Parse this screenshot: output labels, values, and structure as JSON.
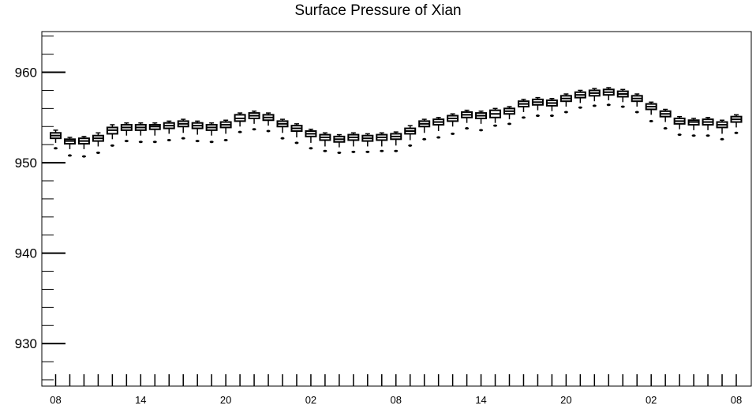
{
  "chart_data": {
    "type": "boxplot",
    "title": "Surface Pressure of Xian",
    "xlabel": "",
    "ylabel": "",
    "ylim": [
      925.3,
      964.5
    ],
    "yticks": [
      930,
      940,
      950,
      960
    ],
    "ytick_labels": [
      "930",
      "940",
      "950",
      "960"
    ],
    "xtick_labels": [
      "08",
      "14",
      "20",
      "02",
      "08",
      "14",
      "20",
      "02",
      "08"
    ],
    "xtick_label_steps": [
      0,
      6,
      12,
      18,
      24,
      30,
      36,
      42,
      48
    ],
    "x_step_hours": 1,
    "x_step_count": 48,
    "boxes": [
      {
        "step": 0,
        "q1": 952.7,
        "median": 953.0,
        "q3": 953.3,
        "whisker_low": 952.2,
        "whisker_high": 953.6,
        "outliers": [
          951.6
        ]
      },
      {
        "step": 1,
        "q1": 952.1,
        "median": 952.4,
        "q3": 952.6,
        "whisker_low": 951.5,
        "whisker_high": 952.8,
        "outliers": [
          950.8
        ]
      },
      {
        "step": 2,
        "q1": 952.1,
        "median": 952.4,
        "q3": 952.7,
        "whisker_low": 951.5,
        "whisker_high": 952.9,
        "outliers": [
          950.7
        ]
      },
      {
        "step": 3,
        "q1": 952.4,
        "median": 952.7,
        "q3": 953.0,
        "whisker_low": 951.8,
        "whisker_high": 953.3,
        "outliers": [
          951.1
        ]
      },
      {
        "step": 4,
        "q1": 953.2,
        "median": 953.6,
        "q3": 953.9,
        "whisker_low": 952.6,
        "whisker_high": 954.2,
        "outliers": [
          951.9
        ]
      },
      {
        "step": 5,
        "q1": 953.6,
        "median": 953.9,
        "q3": 954.2,
        "whisker_low": 953.0,
        "whisker_high": 954.4,
        "outliers": [
          952.4
        ]
      },
      {
        "step": 6,
        "q1": 953.6,
        "median": 953.9,
        "q3": 954.2,
        "whisker_low": 953.0,
        "whisker_high": 954.4,
        "outliers": [
          952.3
        ]
      },
      {
        "step": 7,
        "q1": 953.7,
        "median": 954.0,
        "q3": 954.2,
        "whisker_low": 953.0,
        "whisker_high": 954.4,
        "outliers": [
          952.3
        ]
      },
      {
        "step": 8,
        "q1": 953.8,
        "median": 954.1,
        "q3": 954.4,
        "whisker_low": 953.2,
        "whisker_high": 954.6,
        "outliers": [
          952.5
        ]
      },
      {
        "step": 9,
        "q1": 954.0,
        "median": 954.3,
        "q3": 954.6,
        "whisker_low": 953.3,
        "whisker_high": 954.8,
        "outliers": [
          952.7
        ]
      },
      {
        "step": 10,
        "q1": 953.8,
        "median": 954.1,
        "q3": 954.4,
        "whisker_low": 953.1,
        "whisker_high": 954.6,
        "outliers": [
          952.4
        ]
      },
      {
        "step": 11,
        "q1": 953.6,
        "median": 953.9,
        "q3": 954.2,
        "whisker_low": 953.0,
        "whisker_high": 954.4,
        "outliers": [
          952.3
        ]
      },
      {
        "step": 12,
        "q1": 953.9,
        "median": 954.2,
        "q3": 954.5,
        "whisker_low": 953.2,
        "whisker_high": 954.7,
        "outliers": [
          952.5
        ]
      },
      {
        "step": 13,
        "q1": 954.6,
        "median": 954.9,
        "q3": 955.3,
        "whisker_low": 954.0,
        "whisker_high": 955.5,
        "outliers": [
          953.4
        ]
      },
      {
        "step": 14,
        "q1": 954.9,
        "median": 955.2,
        "q3": 955.5,
        "whisker_low": 954.3,
        "whisker_high": 955.7,
        "outliers": [
          953.7
        ]
      },
      {
        "step": 15,
        "q1": 954.7,
        "median": 955.0,
        "q3": 955.3,
        "whisker_low": 954.1,
        "whisker_high": 955.5,
        "outliers": [
          953.5
        ]
      },
      {
        "step": 16,
        "q1": 954.0,
        "median": 954.3,
        "q3": 954.6,
        "whisker_low": 953.3,
        "whisker_high": 954.8,
        "outliers": [
          952.7
        ]
      },
      {
        "step": 17,
        "q1": 953.5,
        "median": 953.8,
        "q3": 954.1,
        "whisker_low": 952.8,
        "whisker_high": 954.3,
        "outliers": [
          952.2
        ]
      },
      {
        "step": 18,
        "q1": 952.9,
        "median": 953.2,
        "q3": 953.5,
        "whisker_low": 952.2,
        "whisker_high": 953.7,
        "outliers": [
          951.6
        ]
      },
      {
        "step": 19,
        "q1": 952.5,
        "median": 952.8,
        "q3": 953.1,
        "whisker_low": 951.8,
        "whisker_high": 953.3,
        "outliers": [
          951.3
        ]
      },
      {
        "step": 20,
        "q1": 952.3,
        "median": 952.6,
        "q3": 952.9,
        "whisker_low": 951.7,
        "whisker_high": 953.1,
        "outliers": [
          951.1
        ]
      },
      {
        "step": 21,
        "q1": 952.5,
        "median": 952.8,
        "q3": 953.1,
        "whisker_low": 951.8,
        "whisker_high": 953.3,
        "outliers": [
          951.2
        ]
      },
      {
        "step": 22,
        "q1": 952.4,
        "median": 952.7,
        "q3": 953.0,
        "whisker_low": 951.8,
        "whisker_high": 953.2,
        "outliers": [
          951.2
        ]
      },
      {
        "step": 23,
        "q1": 952.5,
        "median": 952.8,
        "q3": 953.1,
        "whisker_low": 951.8,
        "whisker_high": 953.3,
        "outliers": [
          951.3
        ]
      },
      {
        "step": 24,
        "q1": 952.6,
        "median": 952.9,
        "q3": 953.2,
        "whisker_low": 951.9,
        "whisker_high": 953.4,
        "outliers": [
          951.3
        ]
      },
      {
        "step": 25,
        "q1": 953.2,
        "median": 953.5,
        "q3": 953.8,
        "whisker_low": 952.5,
        "whisker_high": 954.1,
        "outliers": [
          951.9
        ]
      },
      {
        "step": 26,
        "q1": 954.0,
        "median": 954.3,
        "q3": 954.6,
        "whisker_low": 953.3,
        "whisker_high": 954.8,
        "outliers": [
          952.6
        ]
      },
      {
        "step": 27,
        "q1": 954.2,
        "median": 954.5,
        "q3": 954.8,
        "whisker_low": 953.5,
        "whisker_high": 955.0,
        "outliers": [
          952.8
        ]
      },
      {
        "step": 28,
        "q1": 954.6,
        "median": 954.9,
        "q3": 955.2,
        "whisker_low": 954.0,
        "whisker_high": 955.4,
        "outliers": [
          953.2
        ]
      },
      {
        "step": 29,
        "q1": 955.0,
        "median": 955.3,
        "q3": 955.6,
        "whisker_low": 954.4,
        "whisker_high": 955.8,
        "outliers": [
          953.8
        ]
      },
      {
        "step": 30,
        "q1": 954.9,
        "median": 955.2,
        "q3": 955.5,
        "whisker_low": 954.3,
        "whisker_high": 955.7,
        "outliers": [
          953.6
        ]
      },
      {
        "step": 31,
        "q1": 955.0,
        "median": 955.4,
        "q3": 955.8,
        "whisker_low": 954.4,
        "whisker_high": 956.0,
        "outliers": [
          954.1
        ]
      },
      {
        "step": 32,
        "q1": 955.4,
        "median": 955.7,
        "q3": 956.0,
        "whisker_low": 954.8,
        "whisker_high": 956.2,
        "outliers": [
          954.3
        ]
      },
      {
        "step": 33,
        "q1": 956.2,
        "median": 956.5,
        "q3": 956.8,
        "whisker_low": 955.6,
        "whisker_high": 957.0,
        "outliers": [
          955.0
        ]
      },
      {
        "step": 34,
        "q1": 956.4,
        "median": 956.7,
        "q3": 957.0,
        "whisker_low": 955.8,
        "whisker_high": 957.2,
        "outliers": [
          955.2
        ]
      },
      {
        "step": 35,
        "q1": 956.3,
        "median": 956.6,
        "q3": 956.9,
        "whisker_low": 955.7,
        "whisker_high": 957.1,
        "outliers": [
          955.2
        ]
      },
      {
        "step": 36,
        "q1": 956.8,
        "median": 957.1,
        "q3": 957.4,
        "whisker_low": 956.2,
        "whisker_high": 957.6,
        "outliers": [
          955.6
        ]
      },
      {
        "step": 37,
        "q1": 957.2,
        "median": 957.5,
        "q3": 957.8,
        "whisker_low": 956.6,
        "whisker_high": 958.0,
        "outliers": [
          956.1
        ]
      },
      {
        "step": 38,
        "q1": 957.4,
        "median": 957.7,
        "q3": 958.0,
        "whisker_low": 956.8,
        "whisker_high": 958.2,
        "outliers": [
          956.3
        ]
      },
      {
        "step": 39,
        "q1": 957.5,
        "median": 957.8,
        "q3": 958.1,
        "whisker_low": 956.9,
        "whisker_high": 958.3,
        "outliers": [
          956.4
        ]
      },
      {
        "step": 40,
        "q1": 957.3,
        "median": 957.6,
        "q3": 957.9,
        "whisker_low": 956.7,
        "whisker_high": 958.1,
        "outliers": [
          956.2
        ]
      },
      {
        "step": 41,
        "q1": 956.8,
        "median": 957.1,
        "q3": 957.4,
        "whisker_low": 956.2,
        "whisker_high": 957.6,
        "outliers": [
          955.6
        ]
      },
      {
        "step": 42,
        "q1": 955.9,
        "median": 956.2,
        "q3": 956.5,
        "whisker_low": 955.3,
        "whisker_high": 956.7,
        "outliers": [
          954.6
        ]
      },
      {
        "step": 43,
        "q1": 955.1,
        "median": 955.4,
        "q3": 955.7,
        "whisker_low": 954.5,
        "whisker_high": 955.9,
        "outliers": [
          953.8
        ]
      },
      {
        "step": 44,
        "q1": 954.3,
        "median": 954.6,
        "q3": 954.9,
        "whisker_low": 953.7,
        "whisker_high": 955.1,
        "outliers": [
          953.1
        ]
      },
      {
        "step": 45,
        "q1": 954.2,
        "median": 954.5,
        "q3": 954.7,
        "whisker_low": 953.6,
        "whisker_high": 954.9,
        "outliers": [
          953.0
        ]
      },
      {
        "step": 46,
        "q1": 954.2,
        "median": 954.5,
        "q3": 954.8,
        "whisker_low": 953.6,
        "whisker_high": 955.0,
        "outliers": [
          953.0
        ]
      },
      {
        "step": 47,
        "q1": 953.9,
        "median": 954.2,
        "q3": 954.5,
        "whisker_low": 953.2,
        "whisker_high": 954.7,
        "outliers": [
          952.6
        ]
      },
      {
        "step": 48,
        "q1": 954.5,
        "median": 954.8,
        "q3": 955.1,
        "whisker_low": 953.9,
        "whisker_high": 955.3,
        "outliers": [
          953.3
        ]
      }
    ],
    "grid": false,
    "legend": "none",
    "colors": {
      "box": "#000000",
      "background": "#ffffff",
      "axis": "#000000"
    }
  }
}
